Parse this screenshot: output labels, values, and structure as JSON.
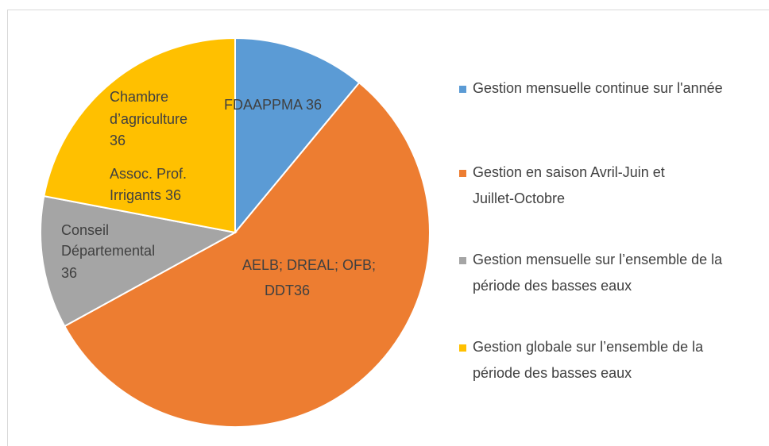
{
  "chart_data": {
    "type": "pie",
    "categories": [
      "Gestion mensuelle continue sur l'année",
      "Gestion en saison Avril-Juin et Juillet-Octobre",
      "Gestion mensuelle sur l’ensemble de la période des basses eaux",
      "Gestion globale sur l’ensemble de la période des basses eaux"
    ],
    "values": [
      11,
      56,
      11,
      22
    ],
    "colors": [
      "#5b9bd5",
      "#ed7d31",
      "#a5a5a5",
      "#ffc000"
    ],
    "data_labels": [
      [
        "FDAAPPMA 36"
      ],
      [
        "AELB; DREAL; OFB;",
        "DDT36"
      ],
      [
        "Conseil",
        "Départemental",
        "36"
      ],
      [
        "Chambre",
        "d’agriculture",
        "36",
        "Assoc. Prof.",
        "Irrigants 36"
      ]
    ],
    "legend": "right"
  }
}
